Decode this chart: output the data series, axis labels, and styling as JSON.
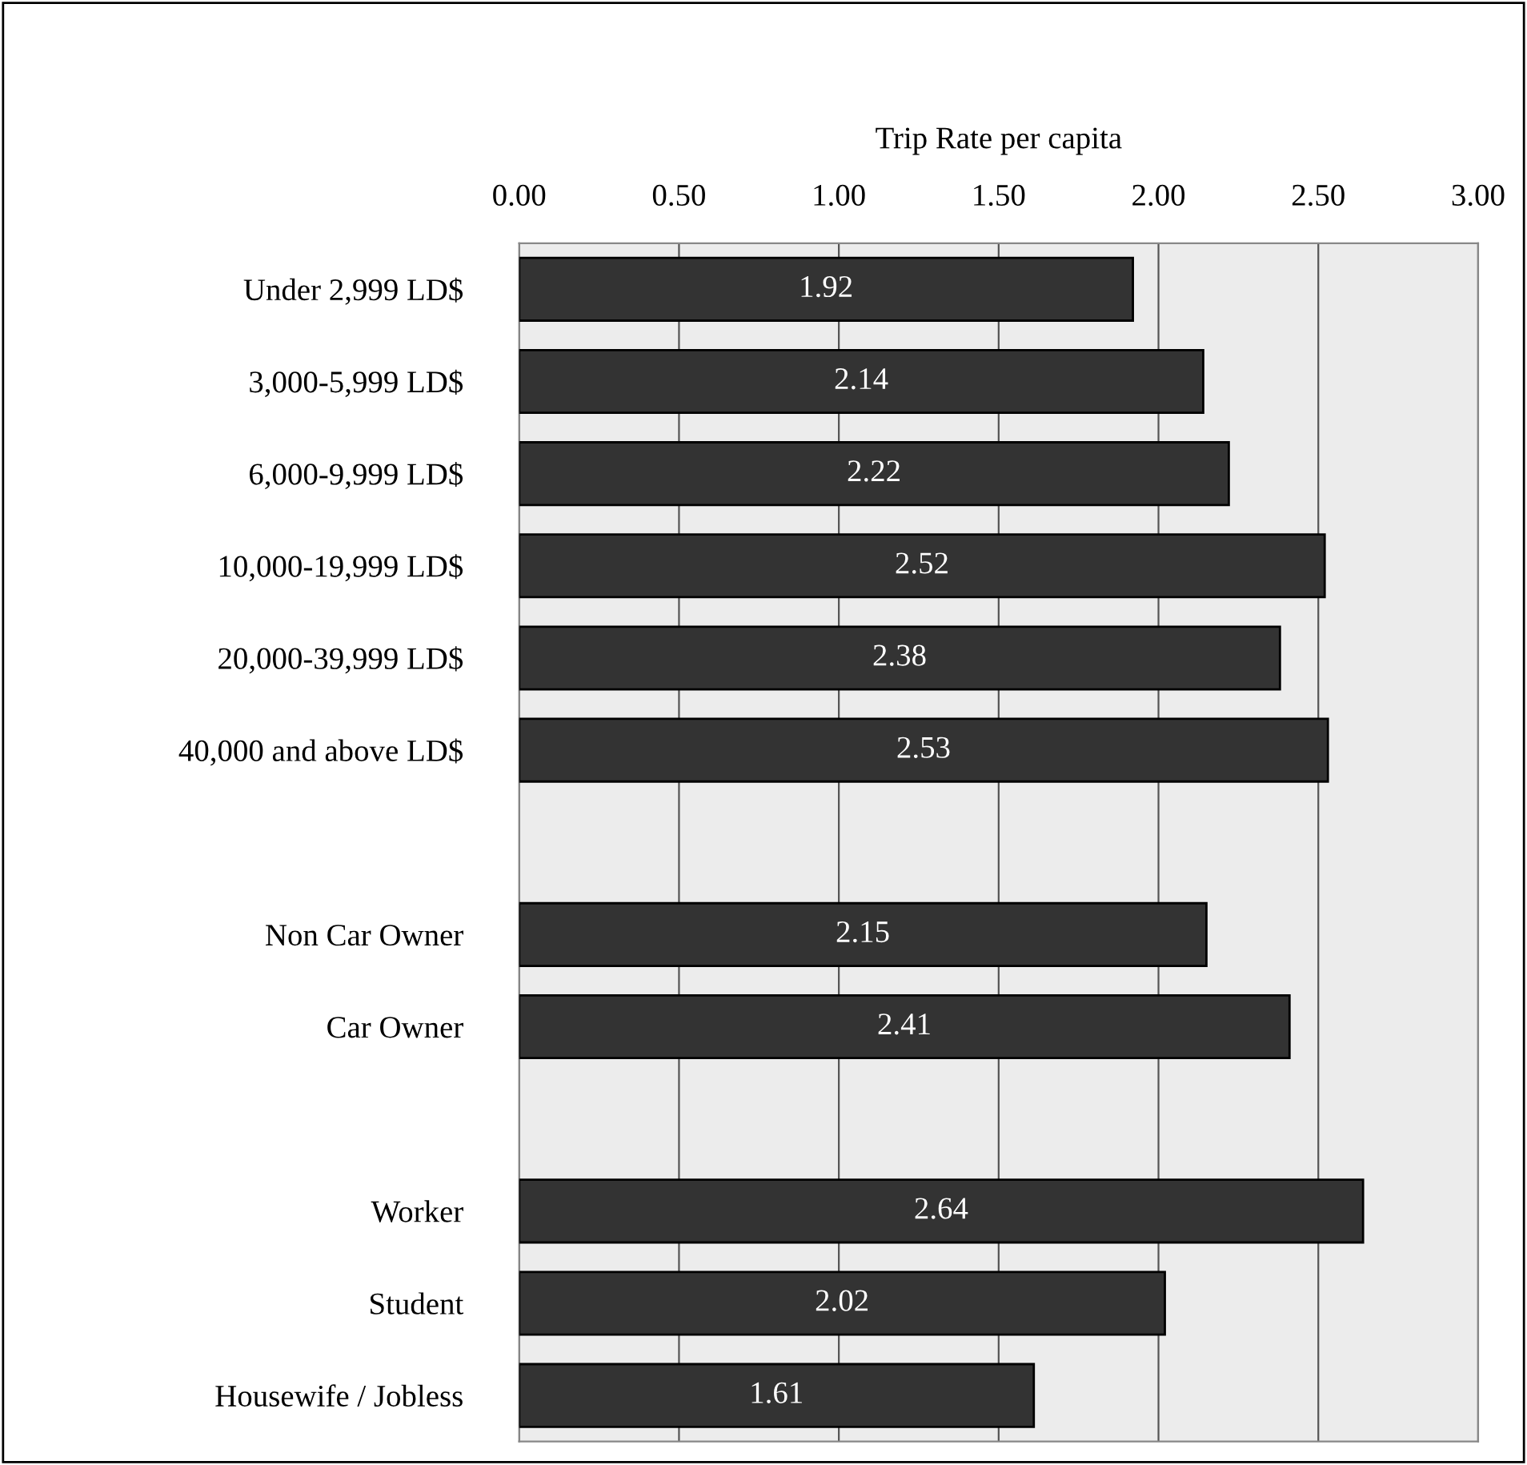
{
  "chart_data": {
    "type": "bar",
    "orientation": "horizontal",
    "xlabel": "Trip Rate per capita",
    "categories": [
      "Under 2,999 LD$",
      "3,000-5,999 LD$",
      "6,000-9,999 LD$",
      "10,000-19,999 LD$",
      "20,000-39,999 LD$",
      "40,000 and above LD$",
      null,
      "Non Car Owner",
      "Car Owner",
      null,
      "Worker",
      "Student",
      "Housewife / Jobless"
    ],
    "values": [
      1.92,
      2.14,
      2.22,
      2.52,
      2.38,
      2.53,
      null,
      2.15,
      2.41,
      null,
      2.64,
      2.02,
      1.61
    ],
    "color": "#333333",
    "xlim": [
      0,
      3
    ],
    "xticks": [
      {
        "value": 0,
        "label": "0.00"
      },
      {
        "value": 0.5,
        "label": "0.50"
      },
      {
        "value": 1,
        "label": "1.00"
      },
      {
        "value": 1.5,
        "label": "1.50"
      },
      {
        "value": 2,
        "label": "2.00"
      },
      {
        "value": 2.5,
        "label": "2.50"
      },
      {
        "value": 3,
        "label": "3.00"
      }
    ],
    "grid": "x",
    "data_labels": true
  }
}
